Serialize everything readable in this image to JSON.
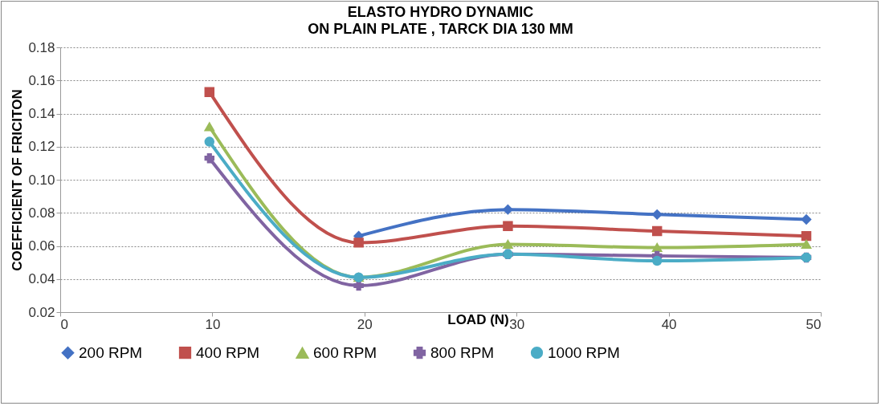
{
  "chart_data": {
    "type": "line",
    "title": "ELASTO HYDRO DYNAMIC",
    "subtitle": "ON PLAIN PLATE , TARCK DIA 130 MM",
    "xlabel": "LOAD (N)",
    "ylabel": "COEFFICIENT OF FRICITON",
    "x": [
      9.81,
      19.62,
      29.43,
      39.24,
      49.05
    ],
    "xlim": [
      0,
      50
    ],
    "xticks": [
      0,
      10,
      20,
      30,
      40,
      50
    ],
    "ylim": [
      0.02,
      0.18
    ],
    "yticks": [
      0.02,
      0.04,
      0.06,
      0.08,
      {
        "value": 0.1,
        "label": "0.10"
      },
      0.12,
      0.14,
      0.16,
      0.18
    ],
    "grid": "y",
    "legend": "bottom",
    "series": [
      {
        "name": "200 RPM",
        "color": "#4472c4",
        "marker": "diamond",
        "values": [
          null,
          0.066,
          0.082,
          0.079,
          0.076
        ]
      },
      {
        "name": "400 RPM",
        "color": "#c0504d",
        "marker": "square",
        "values": [
          0.153,
          0.062,
          0.072,
          0.069,
          0.066
        ]
      },
      {
        "name": "600 RPM",
        "color": "#9bbb59",
        "marker": "triangle",
        "values": [
          0.132,
          0.041,
          0.061,
          0.059,
          0.061
        ]
      },
      {
        "name": "800 RPM",
        "color": "#8064a2",
        "marker": "cross",
        "values": [
          0.113,
          0.036,
          0.055,
          0.054,
          0.053
        ]
      },
      {
        "name": "1000 RPM",
        "color": "#4bacc6",
        "marker": "circle",
        "values": [
          0.123,
          0.041,
          0.055,
          0.051,
          0.053
        ]
      }
    ]
  }
}
